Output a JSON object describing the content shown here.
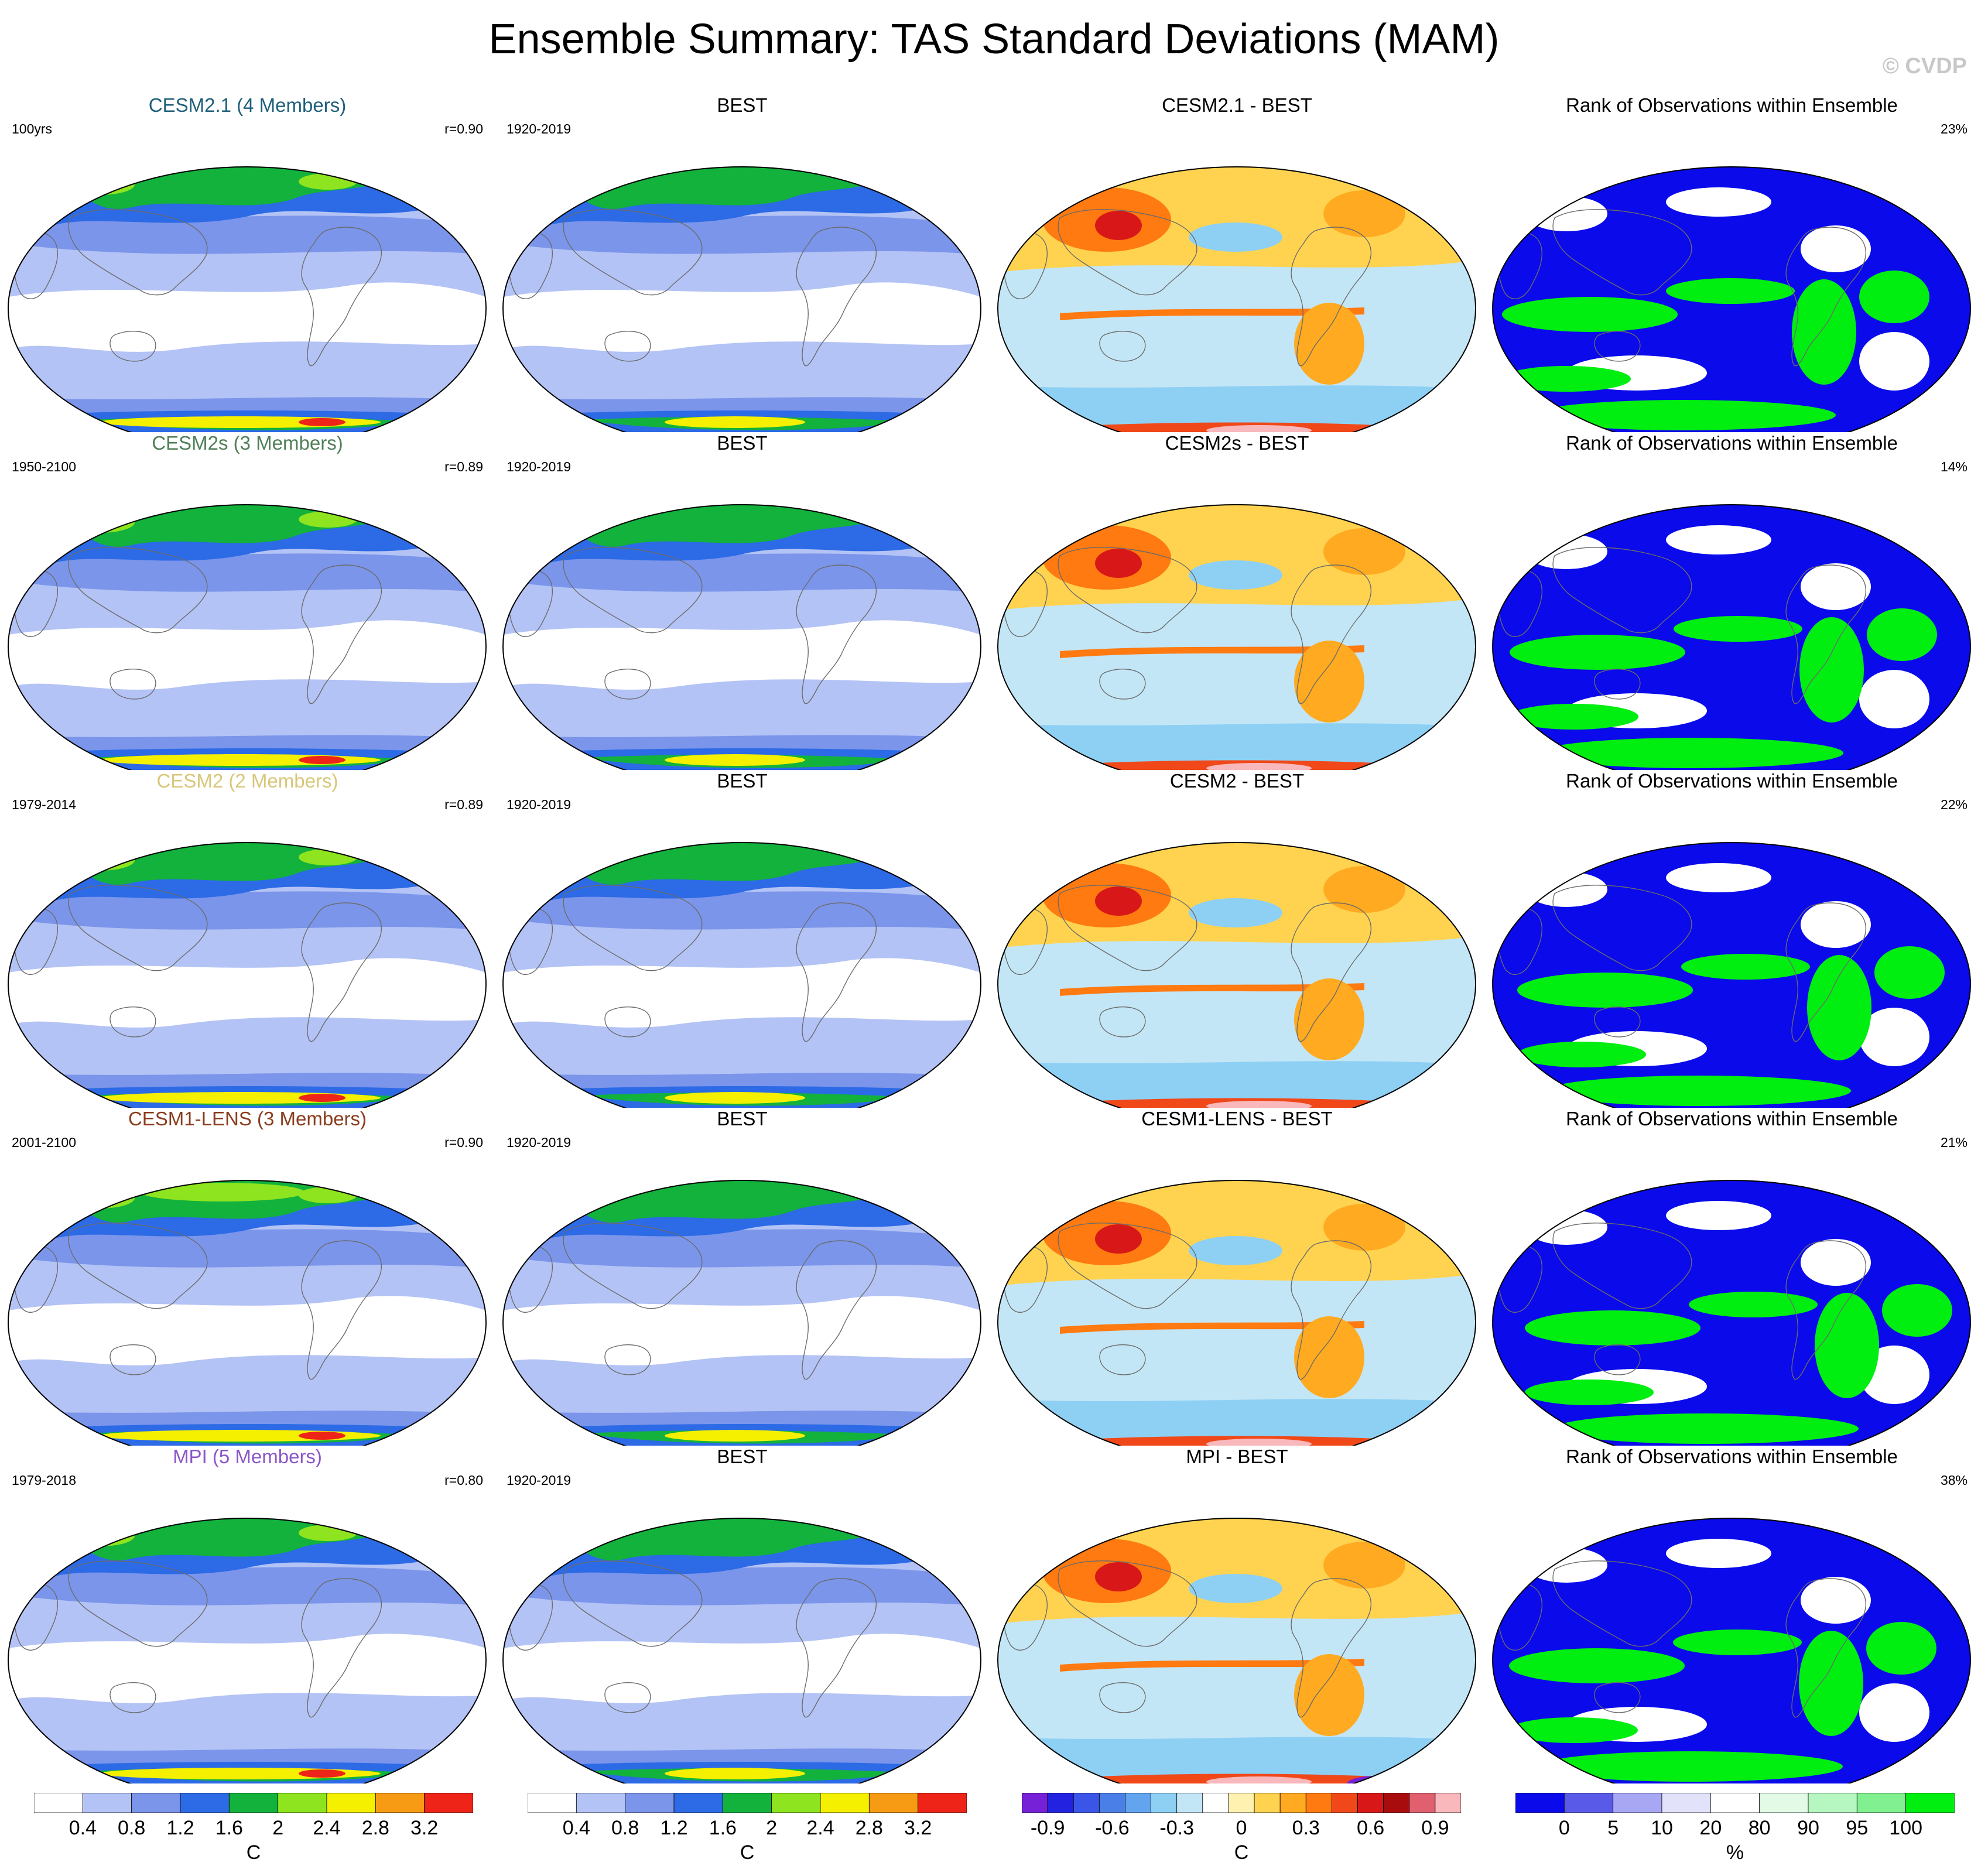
{
  "title": "Ensemble Summary: TAS Standard Deviations (MAM)",
  "watermark": "© CVDP",
  "rows": [
    {
      "model_title": "CESM2.1 (4 Members)",
      "model_color": "#1f5f7a",
      "model_period": "100yrs",
      "pattern_corr": "r=0.90",
      "obs_title": "BEST",
      "obs_period": "1920-2019",
      "diff_title": "CESM2.1 - BEST",
      "rank_title": "Rank of Observations within Ensemble",
      "rank_pct": "23%"
    },
    {
      "model_title": "CESM2s (3 Members)",
      "model_color": "#4f7f58",
      "model_period": "1950-2100",
      "pattern_corr": "r=0.89",
      "obs_title": "BEST",
      "obs_period": "1920-2019",
      "diff_title": "CESM2s - BEST",
      "rank_title": "Rank of Observations within Ensemble",
      "rank_pct": "14%"
    },
    {
      "model_title": "CESM2 (2 Members)",
      "model_color": "#d8c77a",
      "model_period": "1979-2014",
      "pattern_corr": "r=0.89",
      "obs_title": "BEST",
      "obs_period": "1920-2019",
      "diff_title": "CESM2 - BEST",
      "rank_title": "Rank of Observations within Ensemble",
      "rank_pct": "22%"
    },
    {
      "model_title": "CESM1-LENS (3 Members)",
      "model_color": "#8a3d1e",
      "model_period": "2001-2100",
      "pattern_corr": "r=0.90",
      "obs_title": "BEST",
      "obs_period": "1920-2019",
      "diff_title": "CESM1-LENS - BEST",
      "rank_title": "Rank of Observations within Ensemble",
      "rank_pct": "21%"
    },
    {
      "model_title": "MPI (5 Members)",
      "model_color": "#8b55c8",
      "model_period": "1979-2018",
      "pattern_corr": "r=0.80",
      "obs_title": "BEST",
      "obs_period": "1920-2019",
      "diff_title": "MPI - BEST",
      "rank_title": "Rank of Observations within Ensemble",
      "rank_pct": "38%"
    }
  ],
  "colorbars": {
    "stddev": {
      "colors": [
        "#ffffff",
        "#b4c3f5",
        "#7b95ea",
        "#2c6ae6",
        "#12b23c",
        "#8ee41e",
        "#f4f000",
        "#f79a14",
        "#ee2418"
      ],
      "labels": [
        "0.4",
        "0.8",
        "1.2",
        "1.6",
        "2",
        "2.4",
        "2.8",
        "3.2"
      ],
      "unit": "C"
    },
    "diff": {
      "colors": [
        "#7620d8",
        "#2222e0",
        "#3a55e8",
        "#4b7fe8",
        "#62a4ee",
        "#8ed0f4",
        "#c3e6f6",
        "#ffffff",
        "#fff2b0",
        "#ffd350",
        "#ffaa20",
        "#ff7a10",
        "#f04818",
        "#d81818",
        "#a80c0c",
        "#e06070",
        "#f8b8bc"
      ],
      "labels": [
        "-0.9",
        "-0.6",
        "-0.3",
        "0",
        "0.3",
        "0.6",
        "0.9"
      ],
      "unit": "C"
    },
    "rank": {
      "colors": [
        "#0a0aea",
        "#5a5ae8",
        "#a7a7f4",
        "#e2e2fa",
        "#ffffff",
        "#e2fae6",
        "#b6f6c0",
        "#80f090",
        "#00ee10"
      ],
      "labels": [
        "0",
        "5",
        "10",
        "20",
        "80",
        "90",
        "95",
        "100"
      ],
      "unit": "%"
    }
  }
}
